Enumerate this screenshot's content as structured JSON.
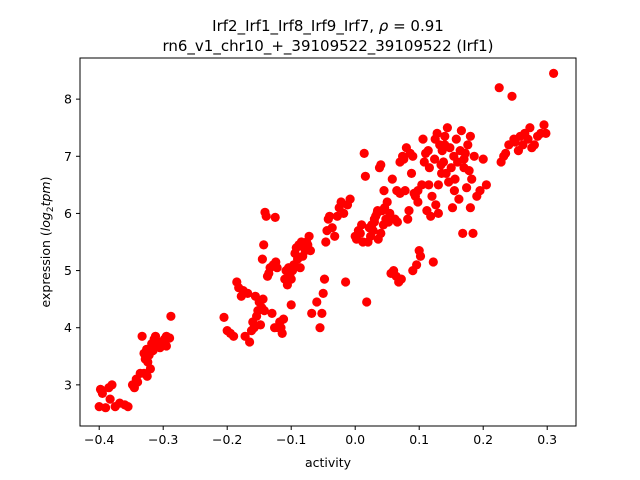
{
  "chart_data": {
    "type": "scatter",
    "title_line1_prefix": "Irf2_Irf1_Irf8_Irf9_Irf7, ",
    "title_line1_rho_symbol": "ρ",
    "title_line1_rho_value": " = 0.91",
    "title_line2": "rn6_v1_chr10_+_39109522_39109522 (Irf1)",
    "xlabel": "activity",
    "ylabel_prefix": "expression (",
    "ylabel_log": "log",
    "ylabel_sub": "2",
    "ylabel_tpm": "tpm",
    "ylabel_suffix": ")",
    "xlim": [
      -0.43,
      0.345
    ],
    "ylim": [
      2.28,
      8.72
    ],
    "xticks": [
      -0.4,
      -0.3,
      -0.2,
      -0.1,
      0.0,
      0.1,
      0.2,
      0.3
    ],
    "xtick_labels": [
      "−0.4",
      "−0.3",
      "−0.2",
      "−0.1",
      "0.0",
      "0.1",
      "0.2",
      "0.3"
    ],
    "yticks": [
      3,
      4,
      5,
      6,
      7,
      8
    ],
    "ytick_labels": [
      "3",
      "4",
      "5",
      "6",
      "7",
      "8"
    ],
    "marker_color": "#ff0000",
    "grid": false,
    "points": [
      [
        -0.4,
        2.62
      ],
      [
        -0.398,
        2.92
      ],
      [
        -0.395,
        2.85
      ],
      [
        -0.39,
        2.6
      ],
      [
        -0.385,
        2.95
      ],
      [
        -0.383,
        2.75
      ],
      [
        -0.38,
        3.0
      ],
      [
        -0.375,
        2.62
      ],
      [
        -0.368,
        2.68
      ],
      [
        -0.36,
        2.65
      ],
      [
        -0.355,
        2.62
      ],
      [
        -0.348,
        3.0
      ],
      [
        -0.345,
        2.95
      ],
      [
        -0.342,
        3.1
      ],
      [
        -0.34,
        3.05
      ],
      [
        -0.336,
        3.2
      ],
      [
        -0.333,
        3.85
      ],
      [
        -0.33,
        3.55
      ],
      [
        -0.328,
        3.45
      ],
      [
        -0.326,
        3.62
      ],
      [
        -0.324,
        3.4
      ],
      [
        -0.322,
        3.52
      ],
      [
        -0.32,
        3.28
      ],
      [
        -0.318,
        3.72
      ],
      [
        -0.316,
        3.6
      ],
      [
        -0.314,
        3.8
      ],
      [
        -0.312,
        3.85
      ],
      [
        -0.31,
        3.68
      ],
      [
        -0.307,
        3.75
      ],
      [
        -0.305,
        3.65
      ],
      [
        -0.302,
        3.7
      ],
      [
        -0.298,
        3.8
      ],
      [
        -0.295,
        3.85
      ],
      [
        -0.295,
        3.68
      ],
      [
        -0.29,
        3.82
      ],
      [
        -0.288,
        4.2
      ],
      [
        -0.33,
        3.2
      ],
      [
        -0.325,
        3.15
      ],
      [
        -0.205,
        4.18
      ],
      [
        -0.2,
        3.95
      ],
      [
        -0.195,
        3.9
      ],
      [
        -0.19,
        3.85
      ],
      [
        -0.185,
        4.8
      ],
      [
        -0.182,
        4.7
      ],
      [
        -0.178,
        4.55
      ],
      [
        -0.175,
        4.65
      ],
      [
        -0.172,
        3.85
      ],
      [
        -0.168,
        4.6
      ],
      [
        -0.165,
        3.75
      ],
      [
        -0.162,
        3.95
      ],
      [
        -0.16,
        4.1
      ],
      [
        -0.158,
        4.0
      ],
      [
        -0.156,
        4.55
      ],
      [
        -0.154,
        4.2
      ],
      [
        -0.152,
        4.3
      ],
      [
        -0.15,
        4.45
      ],
      [
        -0.148,
        4.05
      ],
      [
        -0.146,
        4.35
      ],
      [
        -0.144,
        4.5
      ],
      [
        -0.142,
        4.3
      ],
      [
        -0.145,
        5.2
      ],
      [
        -0.143,
        5.45
      ],
      [
        -0.141,
        6.02
      ],
      [
        -0.139,
        5.95
      ],
      [
        -0.137,
        4.9
      ],
      [
        -0.135,
        4.95
      ],
      [
        -0.133,
        5.05
      ],
      [
        -0.13,
        4.25
      ],
      [
        -0.128,
        5.1
      ],
      [
        -0.126,
        4.0
      ],
      [
        -0.124,
        5.15
      ],
      [
        -0.122,
        5.05
      ],
      [
        -0.12,
        4.0
      ],
      [
        -0.118,
        4.1
      ],
      [
        -0.116,
        4.0
      ],
      [
        -0.114,
        3.9
      ],
      [
        -0.112,
        4.15
      ],
      [
        -0.11,
        4.85
      ],
      [
        -0.108,
        5.0
      ],
      [
        -0.106,
        4.75
      ],
      [
        -0.104,
        5.05
      ],
      [
        -0.102,
        4.9
      ],
      [
        -0.1,
        4.85
      ],
      [
        -0.098,
        5.0
      ],
      [
        -0.096,
        5.1
      ],
      [
        -0.094,
        5.3
      ],
      [
        -0.092,
        5.4
      ],
      [
        -0.09,
        5.2
      ],
      [
        -0.088,
        5.45
      ],
      [
        -0.086,
        5.05
      ],
      [
        -0.084,
        5.5
      ],
      [
        -0.082,
        5.25
      ],
      [
        -0.08,
        5.4
      ],
      [
        -0.078,
        5.35
      ],
      [
        -0.076,
        5.5
      ],
      [
        -0.074,
        5.45
      ],
      [
        -0.072,
        5.6
      ],
      [
        -0.07,
        5.35
      ],
      [
        -0.1,
        4.4
      ],
      [
        -0.125,
        5.93
      ],
      [
        -0.068,
        4.25
      ],
      [
        -0.06,
        4.45
      ],
      [
        -0.055,
        4.0
      ],
      [
        -0.052,
        4.25
      ],
      [
        -0.05,
        4.6
      ],
      [
        -0.048,
        4.85
      ],
      [
        -0.046,
        5.5
      ],
      [
        -0.044,
        5.7
      ],
      [
        -0.042,
        5.9
      ],
      [
        -0.04,
        5.95
      ],
      [
        -0.036,
        5.75
      ],
      [
        -0.032,
        5.6
      ],
      [
        -0.028,
        5.95
      ],
      [
        -0.025,
        6.1
      ],
      [
        -0.022,
        6.2
      ],
      [
        -0.018,
        6.0
      ],
      [
        -0.015,
        4.8
      ],
      [
        -0.012,
        6.15
      ],
      [
        -0.008,
        6.25
      ],
      [
        0.0,
        5.6
      ],
      [
        0.002,
        5.55
      ],
      [
        0.005,
        5.7
      ],
      [
        0.008,
        5.65
      ],
      [
        0.01,
        5.8
      ],
      [
        0.012,
        5.5
      ],
      [
        0.014,
        7.05
      ],
      [
        0.016,
        6.65
      ],
      [
        0.018,
        4.45
      ],
      [
        0.02,
        5.5
      ],
      [
        0.022,
        5.75
      ],
      [
        0.024,
        5.6
      ],
      [
        0.026,
        5.8
      ],
      [
        0.028,
        5.7
      ],
      [
        0.03,
        5.9
      ],
      [
        0.032,
        5.95
      ],
      [
        0.034,
        6.0
      ],
      [
        0.036,
        5.55
      ],
      [
        0.038,
        6.8
      ],
      [
        0.04,
        5.65
      ],
      [
        0.042,
        6.05
      ],
      [
        0.044,
        5.8
      ],
      [
        0.046,
        6.1
      ],
      [
        0.048,
        5.9
      ],
      [
        0.05,
        6.2
      ],
      [
        0.052,
        5.85
      ],
      [
        0.054,
        6.0
      ],
      [
        0.056,
        4.95
      ],
      [
        0.058,
        6.6
      ],
      [
        0.06,
        5.0
      ],
      [
        0.062,
        5.9
      ],
      [
        0.064,
        4.9
      ],
      [
        0.066,
        5.85
      ],
      [
        0.068,
        4.8
      ],
      [
        0.07,
        6.9
      ],
      [
        0.072,
        4.85
      ],
      [
        0.074,
        7.0
      ],
      [
        0.076,
        6.95
      ],
      [
        0.078,
        6.4
      ],
      [
        0.08,
        7.15
      ],
      [
        0.082,
        5.9
      ],
      [
        0.084,
        6.05
      ],
      [
        0.086,
        7.05
      ],
      [
        0.088,
        6.7
      ],
      [
        0.09,
        5.0
      ],
      [
        0.092,
        6.35
      ],
      [
        0.094,
        6.3
      ],
      [
        0.096,
        5.1
      ],
      [
        0.098,
        6.2
      ],
      [
        0.1,
        5.35
      ],
      [
        0.102,
        5.25
      ],
      [
        0.104,
        6.5
      ],
      [
        0.106,
        7.3
      ],
      [
        0.108,
        6.9
      ],
      [
        0.11,
        7.05
      ],
      [
        0.112,
        6.05
      ],
      [
        0.114,
        7.1
      ],
      [
        0.116,
        6.8
      ],
      [
        0.118,
        5.95
      ],
      [
        0.12,
        6.3
      ],
      [
        0.122,
        5.15
      ],
      [
        0.124,
        6.95
      ],
      [
        0.126,
        6.15
      ],
      [
        0.128,
        7.4
      ],
      [
        0.13,
        6.5
      ],
      [
        0.132,
        7.2
      ],
      [
        0.134,
        6.85
      ],
      [
        0.136,
        7.1
      ],
      [
        0.138,
        6.9
      ],
      [
        0.14,
        7.35
      ],
      [
        0.142,
        6.7
      ],
      [
        0.144,
        7.5
      ],
      [
        0.146,
        6.55
      ],
      [
        0.148,
        7.15
      ],
      [
        0.15,
        6.8
      ],
      [
        0.152,
        6.1
      ],
      [
        0.154,
        7.0
      ],
      [
        0.156,
        6.6
      ],
      [
        0.158,
        7.3
      ],
      [
        0.16,
        6.9
      ],
      [
        0.162,
        6.25
      ],
      [
        0.164,
        7.1
      ],
      [
        0.166,
        7.45
      ],
      [
        0.168,
        5.65
      ],
      [
        0.17,
        6.95
      ],
      [
        0.172,
        7.05
      ],
      [
        0.174,
        6.45
      ],
      [
        0.176,
        7.2
      ],
      [
        0.178,
        6.75
      ],
      [
        0.18,
        7.35
      ],
      [
        0.182,
        6.6
      ],
      [
        0.184,
        5.65
      ],
      [
        0.186,
        7.0
      ],
      [
        0.19,
        6.3
      ],
      [
        0.195,
        6.4
      ],
      [
        0.2,
        6.95
      ],
      [
        0.205,
        6.5
      ],
      [
        0.225,
        8.2
      ],
      [
        0.228,
        6.9
      ],
      [
        0.232,
        7.0
      ],
      [
        0.235,
        7.05
      ],
      [
        0.24,
        7.2
      ],
      [
        0.245,
        8.05
      ],
      [
        0.248,
        7.3
      ],
      [
        0.25,
        7.25
      ],
      [
        0.255,
        7.1
      ],
      [
        0.258,
        7.35
      ],
      [
        0.262,
        7.2
      ],
      [
        0.265,
        7.4
      ],
      [
        0.27,
        7.3
      ],
      [
        0.273,
        7.5
      ],
      [
        0.276,
        7.15
      ],
      [
        0.28,
        7.2
      ],
      [
        0.285,
        7.35
      ],
      [
        0.29,
        7.4
      ],
      [
        0.295,
        7.55
      ],
      [
        0.298,
        7.4
      ],
      [
        0.31,
        8.45
      ],
      [
        0.065,
        6.4
      ],
      [
        0.07,
        6.35
      ],
      [
        0.04,
        6.85
      ],
      [
        0.03,
        5.85
      ],
      [
        0.035,
        6.05
      ],
      [
        0.045,
        6.4
      ],
      [
        0.09,
        7.0
      ],
      [
        0.098,
        6.4
      ],
      [
        0.115,
        6.5
      ],
      [
        0.13,
        6.0
      ],
      [
        0.125,
        7.3
      ],
      [
        0.135,
        6.7
      ],
      [
        0.14,
        7.2
      ],
      [
        0.155,
        6.4
      ],
      [
        0.17,
        6.8
      ],
      [
        0.18,
        6.1
      ]
    ]
  }
}
